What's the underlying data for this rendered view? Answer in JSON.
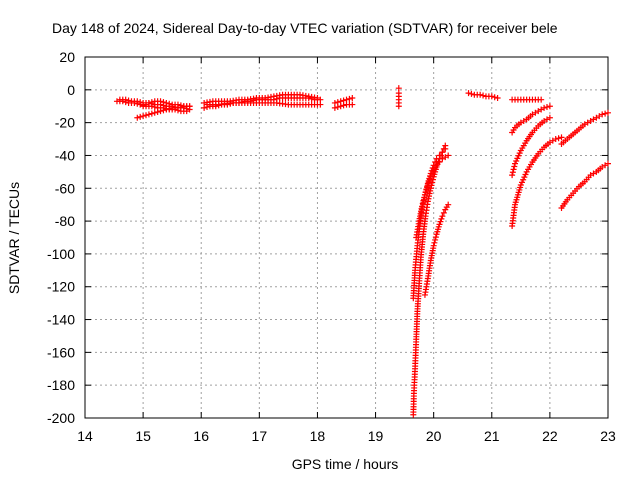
{
  "chart_data": {
    "type": "scatter",
    "title": "Day 148 of 2024, Sidereal Day-to-day VTEC variation (SDTVAR) for receiver bele",
    "xlabel": "GPS time / hours",
    "ylabel": "SDTVAR / TECUs",
    "xlim": [
      14,
      23
    ],
    "ylim": [
      -200,
      20
    ],
    "xticks": [
      "14",
      "15",
      "16",
      "17",
      "18",
      "19",
      "20",
      "21",
      "22",
      "23"
    ],
    "yticks": [
      "20",
      "0",
      "-20",
      "-40",
      "-60",
      "-80",
      "-100",
      "-120",
      "-140",
      "-160",
      "-180",
      "-200"
    ],
    "grid": true,
    "marker": "+",
    "marker_color": "#ff0000",
    "series": [
      {
        "x": [
          14.55,
          14.65,
          14.75,
          14.85,
          14.95,
          15.05,
          15.15,
          15.25,
          15.35,
          15.45,
          15.55,
          15.65,
          15.75
        ],
        "y": [
          -7,
          -7,
          -8,
          -8,
          -9,
          -10,
          -10,
          -11,
          -11,
          -12,
          -12,
          -13,
          -13
        ]
      },
      {
        "x": [
          14.6,
          14.7,
          14.8,
          14.9,
          15.0,
          15.1,
          15.2,
          15.3,
          15.4,
          15.5,
          15.6,
          15.7,
          15.8
        ],
        "y": [
          -6,
          -6,
          -7,
          -7,
          -8,
          -8,
          -9,
          -9,
          -10,
          -10,
          -11,
          -11,
          -12
        ]
      },
      {
        "x": [
          14.9,
          15.0,
          15.1,
          15.2,
          15.3,
          15.4,
          15.5,
          15.6,
          15.7,
          15.8
        ],
        "y": [
          -17,
          -16,
          -15,
          -14,
          -13,
          -12,
          -11,
          -11,
          -10,
          -10
        ]
      },
      {
        "x": [
          15.0,
          15.1,
          15.2,
          15.3,
          15.4,
          15.5,
          15.6,
          15.7,
          15.8
        ],
        "y": [
          -10,
          -8,
          -7,
          -7,
          -8,
          -9,
          -9,
          -10,
          -10
        ]
      },
      {
        "x": [
          16.05,
          16.15,
          16.25,
          16.35,
          16.45,
          16.55,
          16.65,
          16.75,
          16.85,
          16.95,
          17.05,
          17.15,
          17.25,
          17.35,
          17.45,
          17.55,
          17.65,
          17.75,
          17.85,
          17.95,
          18.05
        ],
        "y": [
          -11,
          -10,
          -10,
          -9,
          -9,
          -8,
          -8,
          -7,
          -7,
          -6,
          -6,
          -6,
          -6,
          -5,
          -5,
          -5,
          -5,
          -5,
          -5,
          -6,
          -6
        ]
      },
      {
        "x": [
          16.05,
          16.2,
          16.35,
          16.5,
          16.65,
          16.8,
          16.95,
          17.1,
          17.25,
          17.4,
          17.55,
          17.7,
          17.85,
          18.0
        ],
        "y": [
          -8,
          -7,
          -7,
          -7,
          -6,
          -6,
          -5,
          -5,
          -4,
          -3,
          -3,
          -3,
          -4,
          -5
        ]
      },
      {
        "x": [
          16.1,
          16.3,
          16.5,
          16.7,
          16.9,
          17.1,
          17.3,
          17.5,
          17.7,
          17.9,
          18.05
        ],
        "y": [
          -9,
          -9,
          -8,
          -8,
          -8,
          -8,
          -8,
          -9,
          -9,
          -9,
          -9
        ]
      },
      {
        "x": [
          18.3,
          18.4,
          18.5,
          18.6
        ],
        "y": [
          -8,
          -7,
          -6,
          -5
        ]
      },
      {
        "x": [
          18.3,
          18.4,
          18.5,
          18.6
        ],
        "y": [
          -11,
          -10,
          -9,
          -9
        ]
      },
      {
        "x": [
          19.4,
          19.4,
          19.4,
          19.4,
          19.4,
          19.4
        ],
        "y": [
          1,
          -2,
          -4,
          -6,
          -8,
          -10
        ]
      },
      {
        "x": [
          20.6,
          20.7,
          20.8,
          20.9,
          21.0,
          21.1
        ],
        "y": [
          -2,
          -3,
          -3,
          -4,
          -4,
          -5
        ]
      },
      {
        "x": [
          21.35,
          21.45,
          21.55,
          21.65,
          21.75,
          21.85
        ],
        "y": [
          -6,
          -6,
          -6,
          -6,
          -6,
          -6
        ]
      },
      {
        "x": [
          19.65,
          19.66,
          19.68,
          19.7,
          19.72,
          19.75,
          19.78,
          19.82,
          19.86,
          19.9,
          19.95,
          20.0,
          20.05,
          20.1,
          20.15,
          20.2
        ],
        "y": [
          -198,
          -185,
          -170,
          -152,
          -135,
          -118,
          -102,
          -88,
          -77,
          -68,
          -60,
          -53,
          -47,
          -42,
          -38,
          -34
        ]
      },
      {
        "x": [
          19.65,
          19.68,
          19.72,
          19.76,
          19.8,
          19.85,
          19.9,
          19.95,
          20.0,
          20.05,
          20.1,
          20.15,
          20.2
        ],
        "y": [
          -127,
          -110,
          -95,
          -83,
          -73,
          -64,
          -57,
          -51,
          -46,
          -42,
          -40,
          -38,
          -36
        ]
      },
      {
        "x": [
          19.7,
          19.75,
          19.8,
          19.85,
          19.9,
          19.95,
          20.0,
          20.05,
          20.1,
          20.15,
          20.2,
          20.25
        ],
        "y": [
          -90,
          -80,
          -71,
          -64,
          -58,
          -53,
          -49,
          -46,
          -44,
          -42,
          -41,
          -40
        ]
      },
      {
        "x": [
          19.85,
          19.9,
          19.95,
          20.0,
          20.05,
          20.1,
          20.15,
          20.2,
          20.25
        ],
        "y": [
          -125,
          -115,
          -104,
          -95,
          -88,
          -82,
          -77,
          -73,
          -70
        ]
      },
      {
        "x": [
          21.35,
          21.4,
          21.5,
          21.6,
          21.7,
          21.8,
          21.9,
          22.0
        ],
        "y": [
          -26,
          -23,
          -20,
          -18,
          -15,
          -13,
          -11,
          -10
        ]
      },
      {
        "x": [
          21.35,
          21.4,
          21.5,
          21.6,
          21.7,
          21.8,
          21.9,
          22.0
        ],
        "y": [
          -52,
          -45,
          -37,
          -31,
          -26,
          -22,
          -19,
          -17
        ]
      },
      {
        "x": [
          21.35,
          21.4,
          21.5,
          21.6,
          21.7,
          21.8,
          21.9,
          22.0,
          22.1,
          22.2
        ],
        "y": [
          -83,
          -70,
          -58,
          -50,
          -44,
          -39,
          -35,
          -32,
          -30,
          -29
        ]
      },
      {
        "x": [
          22.2,
          22.3,
          22.4,
          22.5,
          22.6,
          22.7,
          22.8,
          22.9,
          23.0
        ],
        "y": [
          -33,
          -30,
          -27,
          -24,
          -21,
          -19,
          -17,
          -15,
          -14
        ]
      },
      {
        "x": [
          22.2,
          22.3,
          22.4,
          22.5,
          22.6,
          22.7,
          22.8,
          22.9,
          23.0
        ],
        "y": [
          -72,
          -67,
          -63,
          -59,
          -56,
          -52,
          -50,
          -47,
          -45
        ]
      }
    ]
  }
}
